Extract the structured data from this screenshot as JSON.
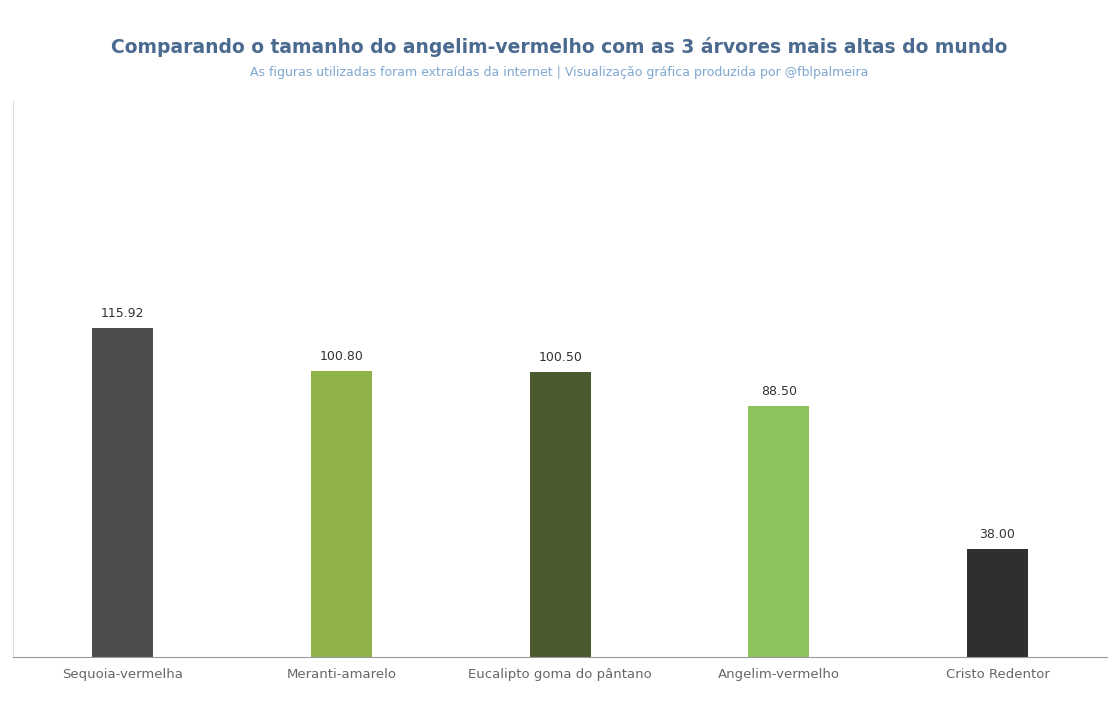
{
  "chart_data": {
    "type": "bar",
    "title": "Comparando o tamanho do angelim-vermelho com as 3 árvores mais altas do mundo",
    "subtitle": "As figuras utilizadas foram extraídas da internet | Visualização gráfica produzida por @fblpalmeira",
    "categories": [
      "Sequoia-vermelha",
      "Meranti-amarelo",
      "Eucalipto goma do pântano",
      "Angelim-vermelho",
      "Cristo Redentor"
    ],
    "values": [
      115.92,
      100.8,
      100.5,
      88.5,
      38.0
    ],
    "value_labels": [
      "115.92",
      "100.80",
      "100.50",
      "88.50",
      "38.00"
    ],
    "colors": [
      "#4d4d4d",
      "#8fb34a",
      "#4a5a2e",
      "#8cc35a",
      "#2f2f2f"
    ],
    "ylim": [
      0,
      196
    ],
    "data_labels": true,
    "tick_labels": "x",
    "grid": false
  }
}
